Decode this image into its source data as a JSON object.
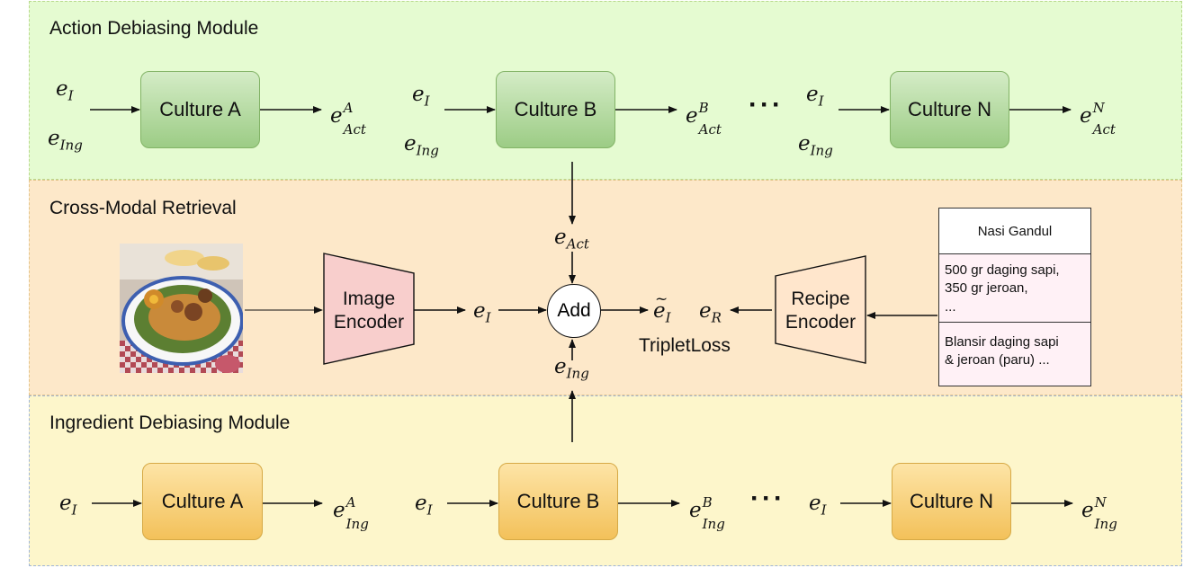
{
  "action_module": {
    "title": "Action Debiasing Module",
    "cultures": [
      "Culture A",
      "Culture B",
      "Culture N"
    ],
    "output_superscripts": [
      "A",
      "B",
      "N"
    ],
    "output_subscript": "Act",
    "ellipsis": "···"
  },
  "retrieval": {
    "title": "Cross-Modal Retrieval",
    "image_encoder": "Image\nEncoder",
    "recipe_encoder": "Recipe\nEncoder",
    "add": "Add",
    "loss": "TripletLoss",
    "recipe": {
      "title": "Nasi Gandul",
      "ingredients": "500 gr daging sapi,\n350 gr jeroan,\n...",
      "instructions": "Blansir daging sapi\n& jeroan (paru) ..."
    }
  },
  "ingredient_module": {
    "title": "Ingredient Debiasing Module",
    "cultures": [
      "Culture A",
      "Culture B",
      "Culture N"
    ],
    "output_superscripts": [
      "A",
      "B",
      "N"
    ],
    "output_subscript": "Ing",
    "ellipsis": "···"
  },
  "symbols": {
    "e": "e",
    "image_sub": "I",
    "ing_sub": "Ing",
    "act_sub": "Act",
    "recipe_sub": "R"
  },
  "colors": {
    "action_bg": "#e5fbd1",
    "retrieval_bg": "#fde8c9",
    "ingredient_bg": "#fdf6cb",
    "action_block": "#9ccc85",
    "ingredient_block": "#f3c15a",
    "image_encoder": "#f8cecc",
    "recipe_encoder": "#ffe6cc"
  }
}
